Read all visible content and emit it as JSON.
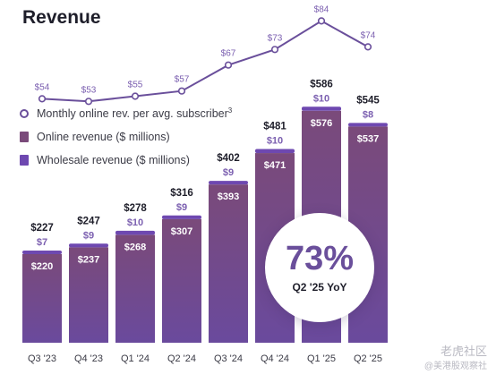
{
  "title": "Revenue",
  "legend": {
    "subscriber_label": "Monthly online rev. per avg. subscriber",
    "subscriber_sup": "3",
    "online_label": "Online revenue ($ millions)",
    "wholesale_label": "Wholesale revenue ($ millions)"
  },
  "badge": {
    "value": "73%",
    "label": "Q2 '25 YoY"
  },
  "watermark": {
    "line1": "老虎社区",
    "line2": "@美港股观察社"
  },
  "colors": {
    "online_top": "#7a4a7a",
    "online_bottom": "#6a4a9d",
    "wholesale": "#6e48b0",
    "line": "#6a4f9b",
    "point_label": "#7b5fb0",
    "wholesale_label": "#7b5fb0"
  },
  "chart_data": {
    "type": "bar",
    "title": "Revenue",
    "categories": [
      "Q3 '23",
      "Q4 '23",
      "Q1 '24",
      "Q2 '24",
      "Q3 '24",
      "Q4 '24",
      "Q1 '25",
      "Q2 '25"
    ],
    "series": [
      {
        "name": "Online revenue ($ millions)",
        "type": "bar",
        "stack": "revenue",
        "values": [
          220,
          237,
          268,
          307,
          393,
          471,
          576,
          537
        ]
      },
      {
        "name": "Wholesale revenue ($ millions)",
        "type": "bar",
        "stack": "revenue",
        "values": [
          7,
          9,
          10,
          9,
          9,
          10,
          10,
          8
        ]
      },
      {
        "name": "Monthly online rev. per avg. subscriber",
        "type": "line",
        "values": [
          54,
          53,
          55,
          57,
          67,
          73,
          84,
          74
        ]
      }
    ],
    "totals": [
      227,
      247,
      278,
      316,
      402,
      481,
      586,
      545
    ],
    "value_prefix": "$",
    "stacked": true,
    "grid": false
  }
}
